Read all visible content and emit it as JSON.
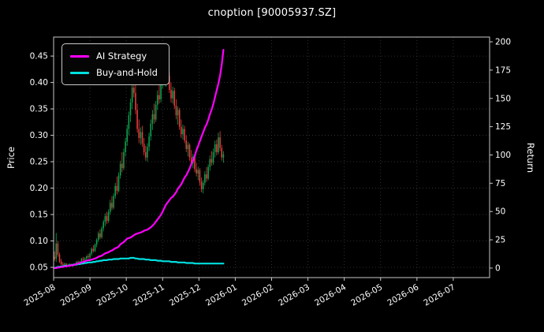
{
  "chart_data": {
    "type": "candlestick+line",
    "title": "cnoption [90005937.SZ]",
    "left_axis": {
      "label": "Price",
      "ticks": [
        0.05,
        0.1,
        0.15,
        0.2,
        0.25,
        0.3,
        0.35,
        0.4,
        0.45
      ],
      "range": [
        0.0306,
        0.486
      ]
    },
    "right_axis": {
      "label": "Return",
      "ticks": [
        0,
        25,
        50,
        75,
        100,
        125,
        150,
        175,
        200
      ],
      "range": [
        -8.4,
        204.2
      ]
    },
    "x_axis": {
      "tick_labels": [
        "2025-08",
        "2025-09",
        "2025-10",
        "2025-11",
        "2025-12",
        "2026-01",
        "2026-02",
        "2026-03",
        "2026-04",
        "2026-05",
        "2026-06",
        "2026-07"
      ],
      "days_per_month": 21.5
    },
    "legend": [
      {
        "label": "AI Strategy",
        "color": "#ff00ff"
      },
      {
        "label": "Buy-and-Hold",
        "color": "#00e0e0"
      }
    ],
    "colors": {
      "background": "#000000",
      "text": "#ffffff",
      "grid": "#3a3a3a",
      "spine": "#c8c8c8",
      "up": "#0ca750",
      "down": "#ef3d3d"
    },
    "candles": [
      [
        0.07,
        0.08,
        0.062,
        0.066
      ],
      [
        0.066,
        0.115,
        0.06,
        0.095
      ],
      [
        0.095,
        0.1,
        0.07,
        0.074
      ],
      [
        0.074,
        0.078,
        0.058,
        0.061
      ],
      [
        0.061,
        0.066,
        0.054,
        0.056
      ],
      [
        0.056,
        0.06,
        0.052,
        0.055
      ],
      [
        0.055,
        0.059,
        0.053,
        0.057
      ],
      [
        0.057,
        0.058,
        0.052,
        0.054
      ],
      [
        0.054,
        0.057,
        0.051,
        0.055
      ],
      [
        0.055,
        0.058,
        0.053,
        0.056
      ],
      [
        0.056,
        0.057,
        0.052,
        0.053
      ],
      [
        0.053,
        0.056,
        0.051,
        0.054
      ],
      [
        0.054,
        0.058,
        0.053,
        0.057
      ],
      [
        0.057,
        0.062,
        0.055,
        0.06
      ],
      [
        0.06,
        0.063,
        0.056,
        0.058
      ],
      [
        0.058,
        0.062,
        0.056,
        0.061
      ],
      [
        0.061,
        0.068,
        0.059,
        0.066
      ],
      [
        0.066,
        0.07,
        0.062,
        0.064
      ],
      [
        0.064,
        0.069,
        0.061,
        0.067
      ],
      [
        0.067,
        0.073,
        0.064,
        0.071
      ],
      [
        0.071,
        0.076,
        0.066,
        0.069
      ],
      [
        0.069,
        0.078,
        0.066,
        0.076
      ],
      [
        0.076,
        0.088,
        0.072,
        0.085
      ],
      [
        0.085,
        0.092,
        0.078,
        0.081
      ],
      [
        0.081,
        0.095,
        0.079,
        0.093
      ],
      [
        0.093,
        0.105,
        0.088,
        0.102
      ],
      [
        0.102,
        0.118,
        0.098,
        0.114
      ],
      [
        0.114,
        0.122,
        0.103,
        0.107
      ],
      [
        0.107,
        0.128,
        0.104,
        0.124
      ],
      [
        0.124,
        0.14,
        0.118,
        0.136
      ],
      [
        0.136,
        0.152,
        0.128,
        0.147
      ],
      [
        0.147,
        0.155,
        0.132,
        0.138
      ],
      [
        0.138,
        0.16,
        0.134,
        0.155
      ],
      [
        0.155,
        0.178,
        0.15,
        0.172
      ],
      [
        0.172,
        0.185,
        0.158,
        0.163
      ],
      [
        0.163,
        0.19,
        0.16,
        0.185
      ],
      [
        0.185,
        0.21,
        0.18,
        0.204
      ],
      [
        0.204,
        0.222,
        0.188,
        0.195
      ],
      [
        0.195,
        0.23,
        0.192,
        0.224
      ],
      [
        0.224,
        0.252,
        0.218,
        0.246
      ],
      [
        0.246,
        0.268,
        0.23,
        0.238
      ],
      [
        0.238,
        0.275,
        0.234,
        0.268
      ],
      [
        0.268,
        0.295,
        0.26,
        0.288
      ],
      [
        0.288,
        0.32,
        0.28,
        0.312
      ],
      [
        0.312,
        0.345,
        0.3,
        0.338
      ],
      [
        0.338,
        0.37,
        0.325,
        0.362
      ],
      [
        0.362,
        0.4,
        0.35,
        0.39
      ],
      [
        0.39,
        0.42,
        0.372,
        0.38
      ],
      [
        0.38,
        0.398,
        0.34,
        0.348
      ],
      [
        0.348,
        0.36,
        0.305,
        0.312
      ],
      [
        0.312,
        0.33,
        0.285,
        0.295
      ],
      [
        0.295,
        0.315,
        0.282,
        0.306
      ],
      [
        0.306,
        0.318,
        0.278,
        0.284
      ],
      [
        0.284,
        0.295,
        0.262,
        0.268
      ],
      [
        0.268,
        0.28,
        0.252,
        0.258
      ],
      [
        0.258,
        0.285,
        0.25,
        0.278
      ],
      [
        0.278,
        0.305,
        0.27,
        0.298
      ],
      [
        0.298,
        0.33,
        0.29,
        0.322
      ],
      [
        0.322,
        0.348,
        0.31,
        0.34
      ],
      [
        0.34,
        0.36,
        0.322,
        0.33
      ],
      [
        0.33,
        0.365,
        0.325,
        0.358
      ],
      [
        0.358,
        0.385,
        0.348,
        0.376
      ],
      [
        0.376,
        0.4,
        0.36,
        0.368
      ],
      [
        0.368,
        0.405,
        0.362,
        0.396
      ],
      [
        0.396,
        0.428,
        0.388,
        0.418
      ],
      [
        0.418,
        0.438,
        0.4,
        0.408
      ],
      [
        0.408,
        0.432,
        0.392,
        0.425
      ],
      [
        0.425,
        0.44,
        0.405,
        0.412
      ],
      [
        0.412,
        0.42,
        0.38,
        0.386
      ],
      [
        0.386,
        0.4,
        0.362,
        0.37
      ],
      [
        0.37,
        0.392,
        0.36,
        0.384
      ],
      [
        0.384,
        0.39,
        0.35,
        0.356
      ],
      [
        0.356,
        0.368,
        0.33,
        0.338
      ],
      [
        0.338,
        0.355,
        0.32,
        0.348
      ],
      [
        0.348,
        0.352,
        0.31,
        0.316
      ],
      [
        0.316,
        0.33,
        0.295,
        0.302
      ],
      [
        0.302,
        0.32,
        0.292,
        0.312
      ],
      [
        0.312,
        0.318,
        0.285,
        0.29
      ],
      [
        0.29,
        0.3,
        0.268,
        0.274
      ],
      [
        0.274,
        0.288,
        0.26,
        0.282
      ],
      [
        0.282,
        0.285,
        0.252,
        0.258
      ],
      [
        0.258,
        0.272,
        0.242,
        0.248
      ],
      [
        0.248,
        0.265,
        0.238,
        0.26
      ],
      [
        0.26,
        0.262,
        0.23,
        0.236
      ],
      [
        0.236,
        0.248,
        0.222,
        0.228
      ],
      [
        0.228,
        0.24,
        0.215,
        0.234
      ],
      [
        0.234,
        0.238,
        0.205,
        0.212
      ],
      [
        0.212,
        0.22,
        0.192,
        0.198
      ],
      [
        0.198,
        0.215,
        0.19,
        0.21
      ],
      [
        0.21,
        0.232,
        0.205,
        0.226
      ],
      [
        0.226,
        0.24,
        0.212,
        0.218
      ],
      [
        0.218,
        0.245,
        0.215,
        0.24
      ],
      [
        0.24,
        0.262,
        0.233,
        0.255
      ],
      [
        0.255,
        0.27,
        0.242,
        0.248
      ],
      [
        0.248,
        0.275,
        0.244,
        0.268
      ],
      [
        0.268,
        0.29,
        0.258,
        0.283
      ],
      [
        0.283,
        0.292,
        0.262,
        0.268
      ],
      [
        0.268,
        0.305,
        0.264,
        0.296
      ],
      [
        0.296,
        0.308,
        0.27,
        0.276
      ],
      [
        0.276,
        0.282,
        0.252,
        0.258
      ],
      [
        0.258,
        0.27,
        0.248,
        0.264
      ]
    ],
    "series": [
      {
        "name": "AI Strategy",
        "axis": "right",
        "color": "#ff00ff",
        "values": [
          0,
          0,
          0.5,
          0.5,
          1,
          1,
          1.5,
          1.5,
          2,
          2,
          2.5,
          2.5,
          3,
          3.5,
          4,
          4.5,
          5,
          5.5,
          6,
          6.5,
          7,
          7,
          7.5,
          8,
          8.5,
          9,
          10,
          10.5,
          11,
          12,
          13,
          13.5,
          14,
          15,
          15.5,
          16.5,
          17.5,
          18,
          19,
          21,
          22,
          23,
          24.5,
          26,
          26.5,
          27,
          28,
          29,
          30,
          30.5,
          31,
          31.5,
          32,
          33,
          33.5,
          34,
          35,
          36,
          37.5,
          39,
          41,
          43,
          45,
          47,
          50,
          53,
          56,
          58,
          60,
          62,
          63,
          65,
          67,
          70,
          72,
          74,
          77,
          80,
          82,
          85,
          88,
          92,
          95,
          99,
          104,
          108,
          112,
          116,
          120,
          124,
          127,
          131,
          136,
          140,
          145,
          151,
          157,
          163,
          170,
          180,
          193
        ]
      },
      {
        "name": "Buy-and-Hold",
        "axis": "right",
        "color": "#00e0e0",
        "values": [
          0,
          0.5,
          1,
          1,
          1.5,
          1.5,
          2,
          2,
          2,
          2.5,
          2.5,
          3,
          3,
          3,
          3.5,
          3.5,
          4,
          4,
          4.5,
          4.5,
          5,
          5,
          5,
          5.5,
          5.5,
          6,
          6,
          6.5,
          6.5,
          7,
          7,
          7,
          7.5,
          7.5,
          7.5,
          8,
          8,
          8,
          8,
          8.5,
          8.5,
          8.5,
          8.5,
          8.5,
          8.5,
          9,
          9,
          9,
          8.5,
          8.5,
          8,
          8,
          8,
          8,
          7.5,
          7.5,
          7.5,
          7,
          7,
          7,
          7,
          6.5,
          6.5,
          6.5,
          6,
          6,
          6,
          6,
          6,
          5.5,
          5.5,
          5.5,
          5.5,
          5,
          5,
          5,
          5,
          5,
          4.5,
          4.5,
          4.5,
          4.5,
          4.5,
          4,
          4,
          4,
          4,
          4,
          4,
          4,
          4,
          4,
          4,
          4,
          4,
          4,
          4,
          4,
          4,
          4,
          4
        ]
      }
    ]
  }
}
